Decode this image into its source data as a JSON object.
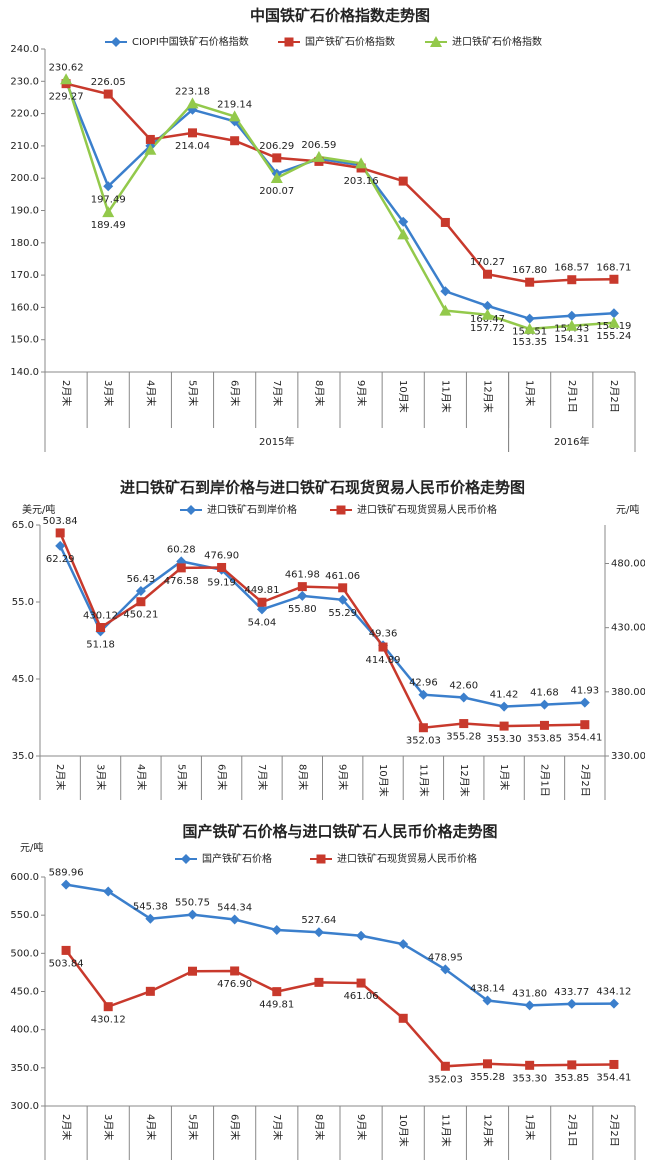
{
  "chart_data": [
    {
      "type": "line",
      "title": "中国铁矿石价格指数走势图",
      "categories": [
        "2月末",
        "3月末",
        "4月末",
        "5月末",
        "6月末",
        "7月末",
        "8月末",
        "9月末",
        "10月末",
        "11月末",
        "12月末",
        "1月末",
        "2月1日",
        "2月2日"
      ],
      "category_groups": [
        "2015年",
        "2015年",
        "2015年",
        "2015年",
        "2015年",
        "2015年",
        "2015年",
        "2015年",
        "2015年",
        "2015年",
        "2015年",
        "2016年",
        "2016年",
        "2016年"
      ],
      "ylim": [
        140,
        240
      ],
      "yticks": [
        {
          "value": 140,
          "label": "140.0"
        },
        {
          "value": 150,
          "label": "150.0"
        },
        {
          "value": 160,
          "label": "160.0"
        },
        {
          "value": 170,
          "label": "170.0"
        },
        {
          "value": 180,
          "label": "180.0"
        },
        {
          "value": 190,
          "label": "190.0"
        },
        {
          "value": 200,
          "label": "200.0"
        },
        {
          "value": 210,
          "label": "210.0"
        },
        {
          "value": 220,
          "label": "220.0"
        },
        {
          "value": 230,
          "label": "230.0"
        },
        {
          "value": 240,
          "label": "240.0"
        }
      ],
      "series": [
        {
          "name": "CIOPI中国铁矿石价格指数",
          "color": "#3b7fcc",
          "marker": "diamond",
          "values": [
            229.9,
            197.49,
            210,
            221.2,
            217.6,
            201.4,
            206,
            204,
            186.5,
            165,
            160.47,
            156.51,
            157.43,
            158.19
          ],
          "value_labels": [
            null,
            "197.49",
            null,
            null,
            null,
            null,
            null,
            null,
            null,
            null,
            "160.47",
            "156.51",
            "157.43",
            "158.19"
          ]
        },
        {
          "name": "国产铁矿石价格指数",
          "color": "#c8392c",
          "marker": "square",
          "values": [
            229.27,
            226.05,
            212,
            214.04,
            211.6,
            206.29,
            205.2,
            203.16,
            199.1,
            186.3,
            170.27,
            167.8,
            168.57,
            168.71
          ],
          "value_labels": [
            "229.27",
            "226.05",
            null,
            "214.04",
            null,
            "206.29",
            null,
            "203.16",
            null,
            null,
            "170.27",
            "167.80",
            "168.57",
            "168.71"
          ]
        },
        {
          "name": "进口铁矿石价格指数",
          "color": "#93c94b",
          "marker": "triangle",
          "values": [
            230.62,
            189.49,
            208.8,
            223.18,
            219.14,
            200.07,
            206.59,
            204.6,
            182.6,
            159,
            157.72,
            153.35,
            154.31,
            155.24
          ],
          "value_labels": [
            "230.62",
            "189.49",
            null,
            "223.18",
            "219.14",
            "200.07",
            "206.59",
            null,
            null,
            null,
            "157.72",
            "153.35",
            "154.31",
            "155.24"
          ]
        }
      ]
    },
    {
      "type": "line",
      "title": "进口铁矿石到岸价格与进口铁矿石现货贸易人民币价格走势图",
      "categories": [
        "2月末",
        "3月末",
        "4月末",
        "5月末",
        "6月末",
        "7月末",
        "8月末",
        "9月末",
        "10月末",
        "11月末",
        "12月末",
        "1月末",
        "2月1日",
        "2月2日"
      ],
      "y_label": "美元/吨",
      "y2_label": "元/吨",
      "ylim": [
        35,
        65
      ],
      "yticks": [
        {
          "value": 35,
          "label": "35.0"
        },
        {
          "value": 45,
          "label": "45.0"
        },
        {
          "value": 55,
          "label": "55.0"
        },
        {
          "value": 65,
          "label": "65.0"
        }
      ],
      "y2lim": [
        330,
        510
      ],
      "y2ticks": [
        {
          "value": 330,
          "label": "330.00"
        },
        {
          "value": 380,
          "label": "380.00"
        },
        {
          "value": 430,
          "label": "430.00"
        },
        {
          "value": 480,
          "label": "480.00"
        }
      ],
      "series": [
        {
          "name": "进口铁矿石到岸价格",
          "color": "#3b7fcc",
          "marker": "diamond",
          "values": [
            62.29,
            51.18,
            56.43,
            60.28,
            59.19,
            54.04,
            55.8,
            55.29,
            49.36,
            42.96,
            42.6,
            41.42,
            41.68,
            41.93
          ],
          "value_labels": [
            "62.29",
            "51.18",
            "56.43",
            "60.28",
            "59.19",
            "54.04",
            "55.80",
            "55.29",
            "49.36",
            "42.96",
            "42.60",
            "41.42",
            "41.68",
            "41.93"
          ]
        },
        {
          "name": "进口铁矿石现货贸易人民币价格",
          "color": "#c8392c",
          "marker": "square",
          "axis": "y2",
          "values": [
            503.84,
            430.12,
            450.21,
            476.58,
            476.9,
            449.81,
            461.98,
            461.06,
            414.89,
            352.03,
            355.28,
            353.3,
            353.85,
            354.41
          ],
          "value_labels": [
            "503.84",
            "430.12",
            "450.21",
            "476.58",
            "476.90",
            "449.81",
            "461.98",
            "461.06",
            "414.89",
            "352.03",
            "355.28",
            "353.30",
            "353.85",
            "354.41"
          ]
        }
      ]
    },
    {
      "type": "line",
      "title": "国产铁矿石价格与进口铁矿石人民币价格走势图",
      "categories": [
        "2月末",
        "3月末",
        "4月末",
        "5月末",
        "6月末",
        "7月末",
        "8月末",
        "9月末",
        "10月末",
        "11月末",
        "12月末",
        "1月末",
        "2月1日",
        "2月2日"
      ],
      "y_label": "元/吨",
      "ylim": [
        300,
        600
      ],
      "yticks": [
        {
          "value": 300,
          "label": "300.0"
        },
        {
          "value": 350,
          "label": "350.0"
        },
        {
          "value": 400,
          "label": "400.0"
        },
        {
          "value": 450,
          "label": "450.0"
        },
        {
          "value": 500,
          "label": "500.0"
        },
        {
          "value": 550,
          "label": "550.0"
        },
        {
          "value": 600,
          "label": "600.0"
        }
      ],
      "series": [
        {
          "name": "国产铁矿石价格",
          "color": "#3b7fcc",
          "marker": "diamond",
          "values": [
            589.96,
            581,
            545.38,
            550.75,
            544.34,
            530.5,
            527.64,
            523,
            512,
            478.95,
            438.14,
            431.8,
            433.77,
            434.12
          ],
          "value_labels": [
            "589.96",
            null,
            "545.38",
            "550.75",
            "544.34",
            null,
            "527.64",
            null,
            null,
            "478.95",
            "438.14",
            "431.80",
            "433.77",
            "434.12"
          ]
        },
        {
          "name": "进口铁矿石现货贸易人民币价格",
          "color": "#c8392c",
          "marker": "square",
          "values": [
            503.84,
            430.12,
            450.21,
            476.58,
            476.9,
            449.81,
            461.98,
            461.06,
            414.89,
            352.03,
            355.28,
            353.3,
            353.85,
            354.41
          ],
          "value_labels": [
            "503.84",
            "430.12",
            null,
            null,
            "476.90",
            "449.81",
            null,
            "461.06",
            null,
            "352.03",
            "355.28",
            "353.30",
            "353.85",
            "354.41"
          ]
        }
      ]
    }
  ]
}
